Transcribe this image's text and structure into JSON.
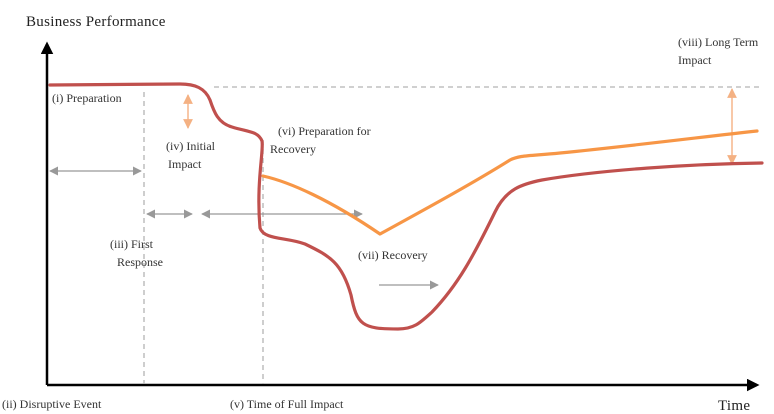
{
  "axes": {
    "y_title": "Business Performance",
    "x_title": "Time"
  },
  "labels": {
    "preparation": "(i) Preparation",
    "disruptive_event": "(ii) Disruptive Event",
    "first_response_1": "(iii) First",
    "first_response_2": "Response",
    "initial_impact_1": "(iv) Initial",
    "initial_impact_2": "Impact",
    "full_impact": "(v) Time of Full Impact",
    "prep_recovery_1": "(vi) Preparation for",
    "prep_recovery_2": "Recovery",
    "recovery": "(vii) Recovery",
    "long_term_1": "(viii) Long Term",
    "long_term_2": "Impact"
  },
  "colors": {
    "disrupted_curve": "#c0504d",
    "recovery_curve": "#f79646",
    "gap_arrow": "#f4b183",
    "phase_arrow": "#999999",
    "guide_line": "#b3b3b3"
  }
}
